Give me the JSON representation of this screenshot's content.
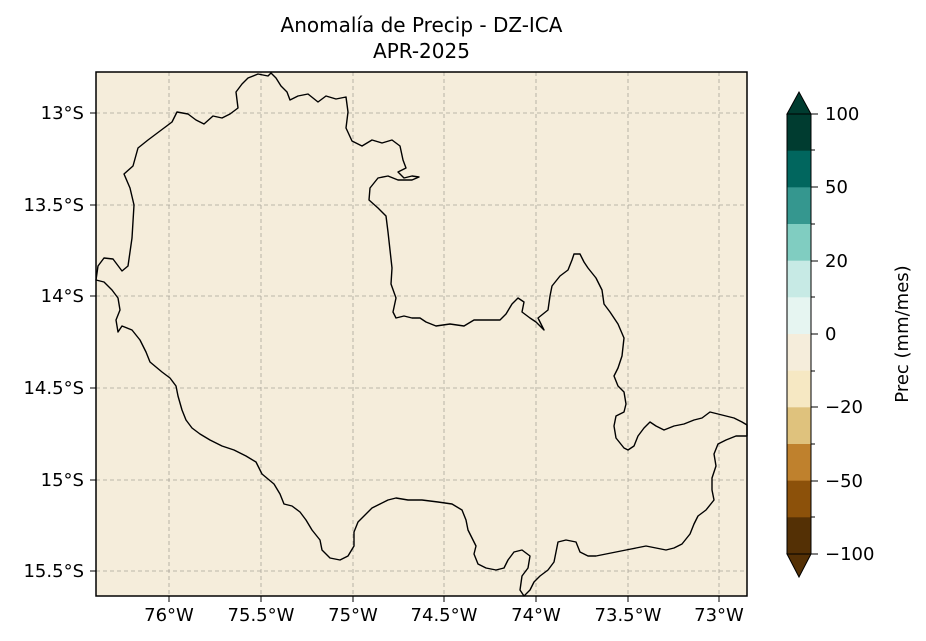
{
  "map": {
    "title": "Anomalía de Precip - DZ-ICA",
    "subtitle": "APR-2025",
    "background_color": "#f5eddb",
    "lat_ticks": [
      "13°S",
      "13.5°S",
      "14°S",
      "14.5°S",
      "15°S",
      "15.5°S"
    ],
    "lon_ticks": [
      "76°W",
      "75.5°W",
      "75°W",
      "74.5°W",
      "74°W",
      "73.5°W",
      "73°W"
    ],
    "gridlines": true
  },
  "colorbar": {
    "label": "Prec (mm/mes)",
    "tick_labels": [
      "100",
      "50",
      "20",
      "0",
      "−20",
      "−50",
      "−100"
    ],
    "colors_top_to_bottom": [
      "#003c30",
      "#01665e",
      "#35978f",
      "#80cdc1",
      "#c7eae5",
      "#e6f5f1",
      "#f5eddb",
      "#f6e8c3",
      "#dfc27d",
      "#bf812d",
      "#8c510a",
      "#543005"
    ],
    "extend": "both"
  }
}
